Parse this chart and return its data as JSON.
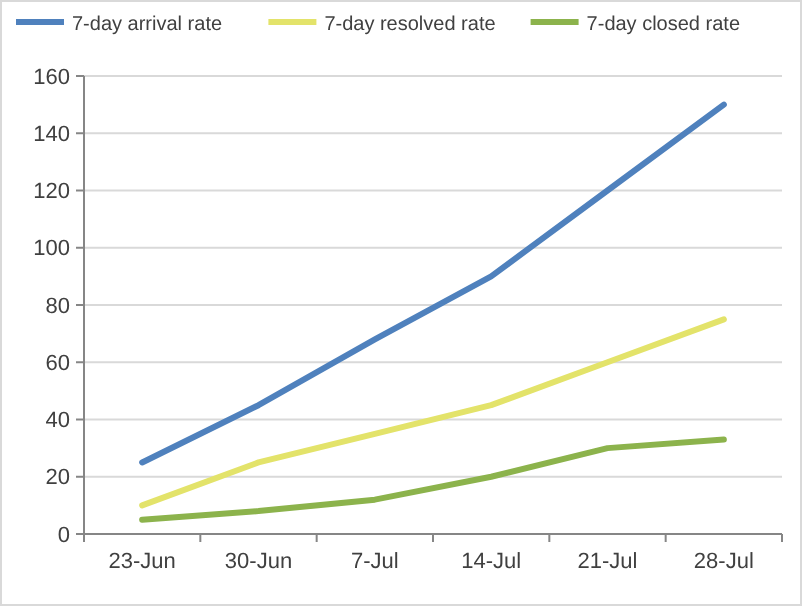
{
  "chart_data": {
    "type": "line",
    "categories": [
      "23-Jun",
      "30-Jun",
      "7-Jul",
      "14-Jul",
      "21-Jul",
      "28-Jul"
    ],
    "series": [
      {
        "name": "7-day arrival rate",
        "color": "#4f81bd",
        "values": [
          25,
          45,
          68,
          90,
          120,
          150
        ]
      },
      {
        "name": "7-day resolved rate",
        "color": "#e3e36a",
        "values": [
          10,
          25,
          35,
          45,
          60,
          75
        ]
      },
      {
        "name": "7-day closed rate",
        "color": "#8cb34c",
        "values": [
          5,
          8,
          12,
          20,
          30,
          33
        ]
      }
    ],
    "ylim": [
      0,
      160
    ],
    "yticks": [
      0,
      20,
      40,
      60,
      80,
      100,
      120,
      140,
      160
    ],
    "grid": "y",
    "legend": "top",
    "marker": "none",
    "line_style": "solid"
  }
}
